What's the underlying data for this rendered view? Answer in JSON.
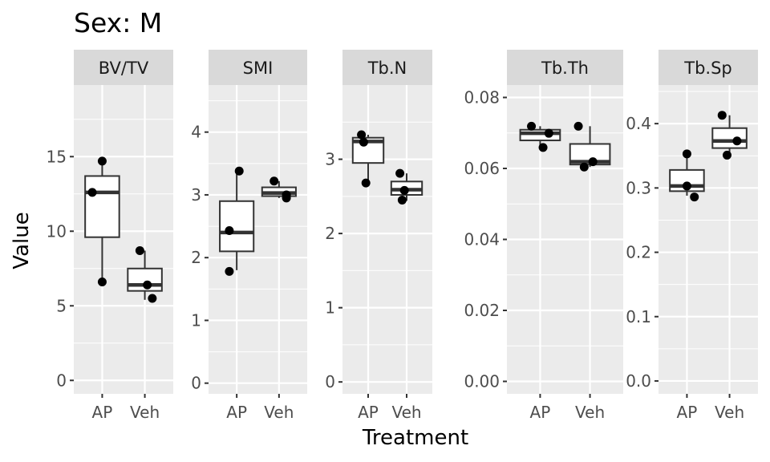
{
  "chart_data": {
    "type": "box",
    "title": "Sex: M",
    "xlabel": "Treatment",
    "ylabel": "Value",
    "categories": [
      "AP",
      "Veh"
    ],
    "facets": [
      {
        "name": "BV/TV",
        "ylim": [
          -0.9,
          19.8
        ],
        "yticks": [
          0,
          5,
          10,
          15
        ],
        "tick_labels": [
          "0",
          "5",
          "10",
          "15"
        ],
        "boxes": [
          {
            "category": "AP",
            "lower": 6.6,
            "q1": 9.6,
            "median": 12.6,
            "q3": 13.7,
            "upper": 14.7
          },
          {
            "category": "Veh",
            "lower": 5.4,
            "q1": 6.0,
            "median": 6.4,
            "q3": 7.5,
            "upper": 8.7
          }
        ],
        "points": [
          {
            "category": "AP",
            "jitter": 0.0,
            "y": 14.7
          },
          {
            "category": "AP",
            "jitter": -0.2,
            "y": 12.6
          },
          {
            "category": "AP",
            "jitter": 0.0,
            "y": 6.6
          },
          {
            "category": "Veh",
            "jitter": -0.1,
            "y": 8.7
          },
          {
            "category": "Veh",
            "jitter": 0.05,
            "y": 6.4
          },
          {
            "category": "Veh",
            "jitter": 0.15,
            "y": 5.5
          }
        ]
      },
      {
        "name": "SMI",
        "ylim": [
          -0.17,
          4.75
        ],
        "yticks": [
          0,
          1,
          2,
          3,
          4
        ],
        "tick_labels": [
          "0",
          "1",
          "2",
          "3",
          "4"
        ],
        "boxes": [
          {
            "category": "AP",
            "lower": 1.8,
            "q1": 2.1,
            "median": 2.4,
            "q3": 2.9,
            "upper": 3.4
          },
          {
            "category": "Veh",
            "lower": 2.95,
            "q1": 2.98,
            "median": 3.03,
            "q3": 3.12,
            "upper": 3.22
          }
        ],
        "points": [
          {
            "category": "AP",
            "jitter": 0.05,
            "y": 3.38
          },
          {
            "category": "AP",
            "jitter": -0.15,
            "y": 2.43
          },
          {
            "category": "AP",
            "jitter": -0.15,
            "y": 1.78
          },
          {
            "category": "Veh",
            "jitter": -0.1,
            "y": 3.22
          },
          {
            "category": "Veh",
            "jitter": 0.15,
            "y": 3.0
          },
          {
            "category": "Veh",
            "jitter": 0.15,
            "y": 2.95
          }
        ]
      },
      {
        "name": "Tb.N",
        "ylim": [
          -0.16,
          4.0
        ],
        "yticks": [
          0,
          1,
          2,
          3
        ],
        "tick_labels": [
          "0",
          "1",
          "2",
          "3"
        ],
        "boxes": [
          {
            "category": "AP",
            "lower": 2.68,
            "q1": 2.95,
            "median": 3.24,
            "q3": 3.29,
            "upper": 3.33
          },
          {
            "category": "Veh",
            "lower": 2.44,
            "q1": 2.52,
            "median": 2.59,
            "q3": 2.7,
            "upper": 2.81
          }
        ],
        "points": [
          {
            "category": "AP",
            "jitter": -0.15,
            "y": 3.33
          },
          {
            "category": "AP",
            "jitter": -0.1,
            "y": 3.23
          },
          {
            "category": "AP",
            "jitter": -0.05,
            "y": 2.68
          },
          {
            "category": "Veh",
            "jitter": -0.15,
            "y": 2.81
          },
          {
            "category": "Veh",
            "jitter": -0.05,
            "y": 2.58
          },
          {
            "category": "Veh",
            "jitter": -0.1,
            "y": 2.45
          }
        ]
      },
      {
        "name": "Tb.Th",
        "ylim": [
          -0.0035,
          0.0835
        ],
        "yticks": [
          0.0,
          0.02,
          0.04,
          0.06,
          0.08
        ],
        "tick_labels": [
          "0.00",
          "0.02",
          "0.04",
          "0.06",
          "0.08"
        ],
        "boxes": [
          {
            "category": "AP",
            "lower": 0.0659,
            "q1": 0.0679,
            "median": 0.0699,
            "q3": 0.0709,
            "upper": 0.0719
          },
          {
            "category": "Veh",
            "lower": 0.0604,
            "q1": 0.0611,
            "median": 0.0619,
            "q3": 0.0669,
            "upper": 0.0719
          }
        ],
        "points": [
          {
            "category": "AP",
            "jitter": -0.15,
            "y": 0.0719
          },
          {
            "category": "AP",
            "jitter": 0.15,
            "y": 0.0699
          },
          {
            "category": "AP",
            "jitter": 0.05,
            "y": 0.0659
          },
          {
            "category": "Veh",
            "jitter": -0.2,
            "y": 0.0719
          },
          {
            "category": "Veh",
            "jitter": 0.05,
            "y": 0.0619
          },
          {
            "category": "Veh",
            "jitter": -0.1,
            "y": 0.0604
          }
        ]
      },
      {
        "name": "Tb.Sp",
        "ylim": [
          -0.02,
          0.46
        ],
        "yticks": [
          0.0,
          0.1,
          0.2,
          0.3,
          0.4
        ],
        "tick_labels": [
          "0.0",
          "0.1",
          "0.2",
          "0.3",
          "0.4"
        ],
        "boxes": [
          {
            "category": "AP",
            "lower": 0.288,
            "q1": 0.295,
            "median": 0.303,
            "q3": 0.328,
            "upper": 0.353
          },
          {
            "category": "Veh",
            "lower": 0.351,
            "q1": 0.362,
            "median": 0.373,
            "q3": 0.393,
            "upper": 0.413
          }
        ],
        "points": [
          {
            "category": "AP",
            "jitter": 0.0,
            "y": 0.353
          },
          {
            "category": "AP",
            "jitter": 0.0,
            "y": 0.303
          },
          {
            "category": "AP",
            "jitter": 0.15,
            "y": 0.286
          },
          {
            "category": "Veh",
            "jitter": -0.15,
            "y": 0.413
          },
          {
            "category": "Veh",
            "jitter": 0.15,
            "y": 0.373
          },
          {
            "category": "Veh",
            "jitter": -0.05,
            "y": 0.351
          }
        ]
      }
    ]
  }
}
